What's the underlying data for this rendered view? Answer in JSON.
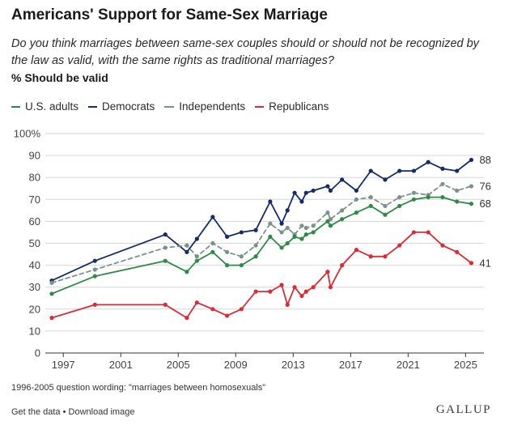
{
  "header": {
    "title": "Americans' Support for Same-Sex Marriage",
    "question": "Do you think marriages between same-sex couples should or should not be recognized by the law as valid, with the same rights as traditional marriages?",
    "measure": "% Should be valid"
  },
  "legend": {
    "us": "U.S. adults",
    "dem": "Democrats",
    "ind": "Independents",
    "rep": "Republicans"
  },
  "colors": {
    "us": "#2e8b45",
    "dem": "#152c6b",
    "ind": "#7a9289",
    "rep": "#dc2b36",
    "grid": "#d6d6d6",
    "axis": "#333333"
  },
  "chart_data": {
    "type": "line",
    "title": "Americans' Support for Same-Sex Marriage",
    "xlabel": "",
    "ylabel": "% Should be valid",
    "xlim": [
      1996.2,
      2025.6
    ],
    "ylim": [
      0,
      100
    ],
    "grid": true,
    "legend_position": "top-left",
    "x_ticks": [
      1997,
      2001,
      2005,
      2009,
      2013,
      2017,
      2021,
      2025
    ],
    "y_ticks": [
      0,
      10,
      20,
      30,
      40,
      50,
      60,
      70,
      80,
      90,
      100
    ],
    "y_tick_labels": [
      "0",
      "10",
      "20",
      "30",
      "40",
      "50",
      "60",
      "70",
      "80",
      "90",
      "100%"
    ],
    "series": [
      {
        "key": "dem",
        "name": "Democrats",
        "style": "solid",
        "end_label": "88",
        "x": [
          1996.2,
          1999.2,
          2004.1,
          2005.6,
          2006.3,
          2007.4,
          2008.4,
          2009.4,
          2010.4,
          2011.4,
          2012.2,
          2012.6,
          2013.1,
          2013.6,
          2013.9,
          2014.4,
          2015.4,
          2015.6,
          2016.4,
          2017.4,
          2018.4,
          2019.4,
          2020.4,
          2021.4,
          2022.4,
          2023.4,
          2024.4,
          2025.4
        ],
        "values": [
          33,
          42,
          54,
          46,
          52,
          62,
          53,
          55,
          56,
          69,
          59,
          65,
          73,
          69,
          73,
          74,
          76,
          74,
          79,
          74,
          83,
          79,
          83,
          83,
          87,
          84,
          83,
          88
        ]
      },
      {
        "key": "ind",
        "name": "Independents",
        "style": "dashed",
        "end_label": "76",
        "x": [
          1996.2,
          1999.2,
          2004.1,
          2005.6,
          2006.3,
          2007.4,
          2008.4,
          2009.4,
          2010.4,
          2011.4,
          2012.2,
          2012.6,
          2013.1,
          2013.6,
          2013.9,
          2014.4,
          2015.4,
          2015.6,
          2016.4,
          2017.4,
          2018.4,
          2019.4,
          2020.4,
          2021.4,
          2022.4,
          2023.4,
          2024.4,
          2025.4
        ],
        "values": [
          32,
          38,
          48,
          49,
          44,
          50,
          46,
          44,
          49,
          59,
          55,
          57,
          54,
          58,
          57,
          58,
          64,
          61,
          65,
          70,
          71,
          67,
          71,
          73,
          72,
          77,
          74,
          76
        ]
      },
      {
        "key": "us",
        "name": "U.S. adults",
        "style": "solid",
        "end_label": "68",
        "x": [
          1996.2,
          1999.2,
          2004.1,
          2005.6,
          2006.3,
          2007.4,
          2008.4,
          2009.4,
          2010.4,
          2011.4,
          2012.2,
          2012.6,
          2013.1,
          2013.6,
          2013.9,
          2014.4,
          2015.4,
          2015.6,
          2016.4,
          2017.4,
          2018.4,
          2019.4,
          2020.4,
          2021.4,
          2022.4,
          2023.4,
          2024.4,
          2025.4
        ],
        "values": [
          27,
          35,
          42,
          37,
          42,
          46,
          40,
          40,
          44,
          53,
          48,
          50,
          53,
          52,
          54,
          55,
          60,
          58,
          61,
          64,
          67,
          63,
          67,
          70,
          71,
          71,
          69,
          68
        ]
      },
      {
        "key": "rep",
        "name": "Republicans",
        "style": "solid",
        "end_label": "41",
        "x": [
          1996.2,
          1999.2,
          2004.1,
          2005.6,
          2006.3,
          2007.4,
          2008.4,
          2009.4,
          2010.4,
          2011.4,
          2012.2,
          2012.6,
          2013.1,
          2013.6,
          2013.9,
          2014.4,
          2015.4,
          2015.6,
          2016.4,
          2017.4,
          2018.4,
          2019.4,
          2020.4,
          2021.4,
          2022.4,
          2023.4,
          2024.4,
          2025.4
        ],
        "values": [
          16,
          22,
          22,
          16,
          23,
          20,
          17,
          20,
          28,
          28,
          31,
          22,
          30,
          26,
          28,
          30,
          37,
          30,
          40,
          47,
          44,
          44,
          49,
          55,
          55,
          49,
          46,
          41
        ]
      }
    ],
    "annotations": [
      "1996-2005 question wording: \"marriages between homosexuals\""
    ]
  },
  "footer": {
    "note": "1996-2005 question wording: \"marriages between homosexuals\"",
    "get_data": "Get the data",
    "separator": " • ",
    "download": "Download image",
    "brand": "GALLUP"
  }
}
